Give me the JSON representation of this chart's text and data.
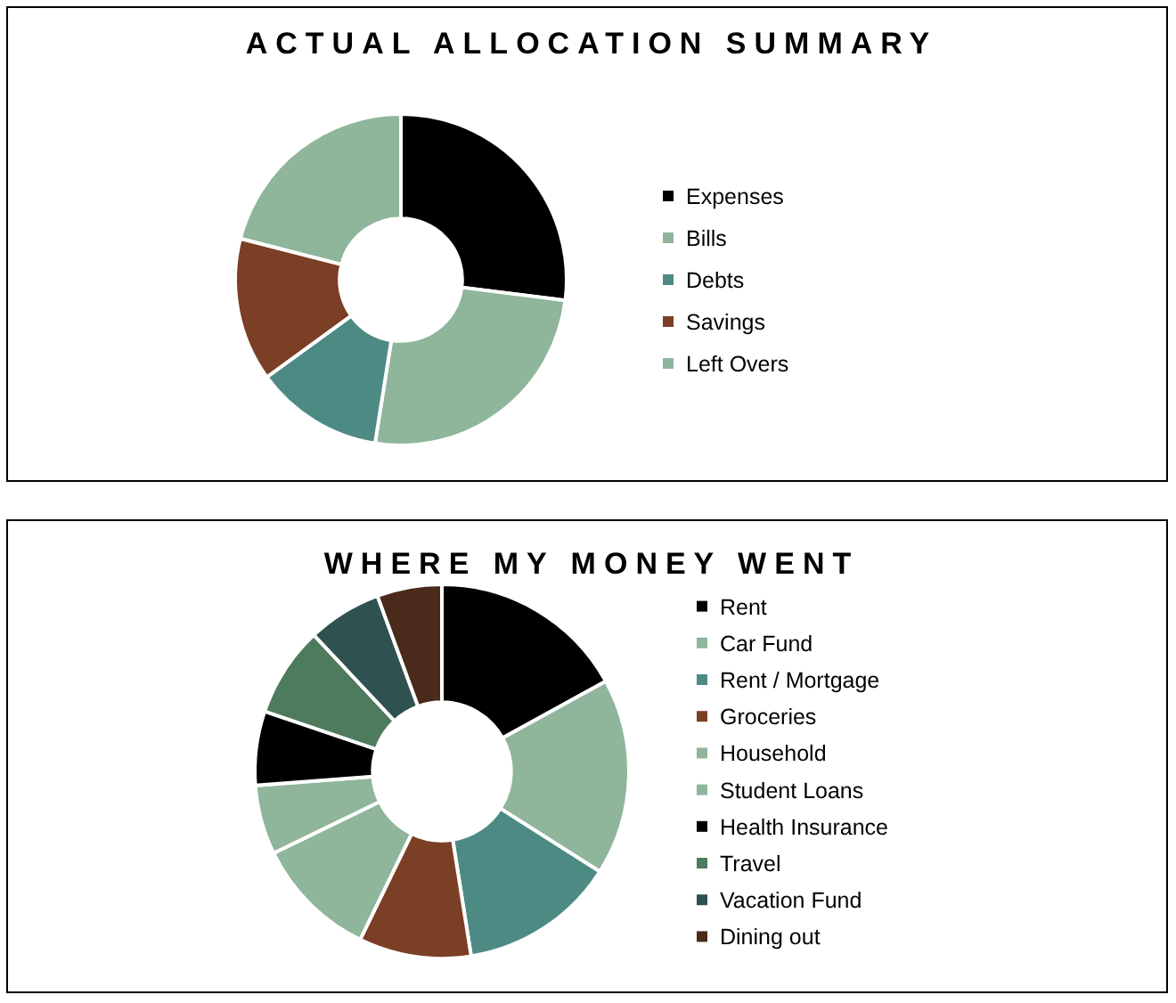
{
  "chart_data": [
    {
      "type": "donut",
      "title": "ACTUAL ALLOCATION SUMMARY",
      "categories": [
        "Expenses",
        "Bills",
        "Debts",
        "Savings",
        "Left Overs"
      ],
      "values": [
        27,
        25.5,
        12.5,
        14,
        21
      ],
      "colors": [
        "#000000",
        "#8fb59b",
        "#4e8a84",
        "#7b3f25",
        "#8fb59b"
      ],
      "legend": "right"
    },
    {
      "type": "donut",
      "title": "WHERE MY MONEY WENT",
      "categories": [
        "Rent",
        "Car Fund",
        "Rent / Mortgage",
        "Groceries",
        "Household",
        "Student Loans",
        "Health Insurance",
        "Travel",
        "Vacation Fund",
        "Dining out"
      ],
      "values": [
        17,
        17,
        13.5,
        9.7,
        10.6,
        6,
        6.4,
        7.8,
        6.4,
        5.6
      ],
      "colors": [
        "#000000",
        "#8fb59b",
        "#4e8a84",
        "#7b3f25",
        "#8fb59b",
        "#8fb59b",
        "#000000",
        "#4e7a5e",
        "#2f5250",
        "#4a2a1a"
      ],
      "legend": "right"
    }
  ]
}
